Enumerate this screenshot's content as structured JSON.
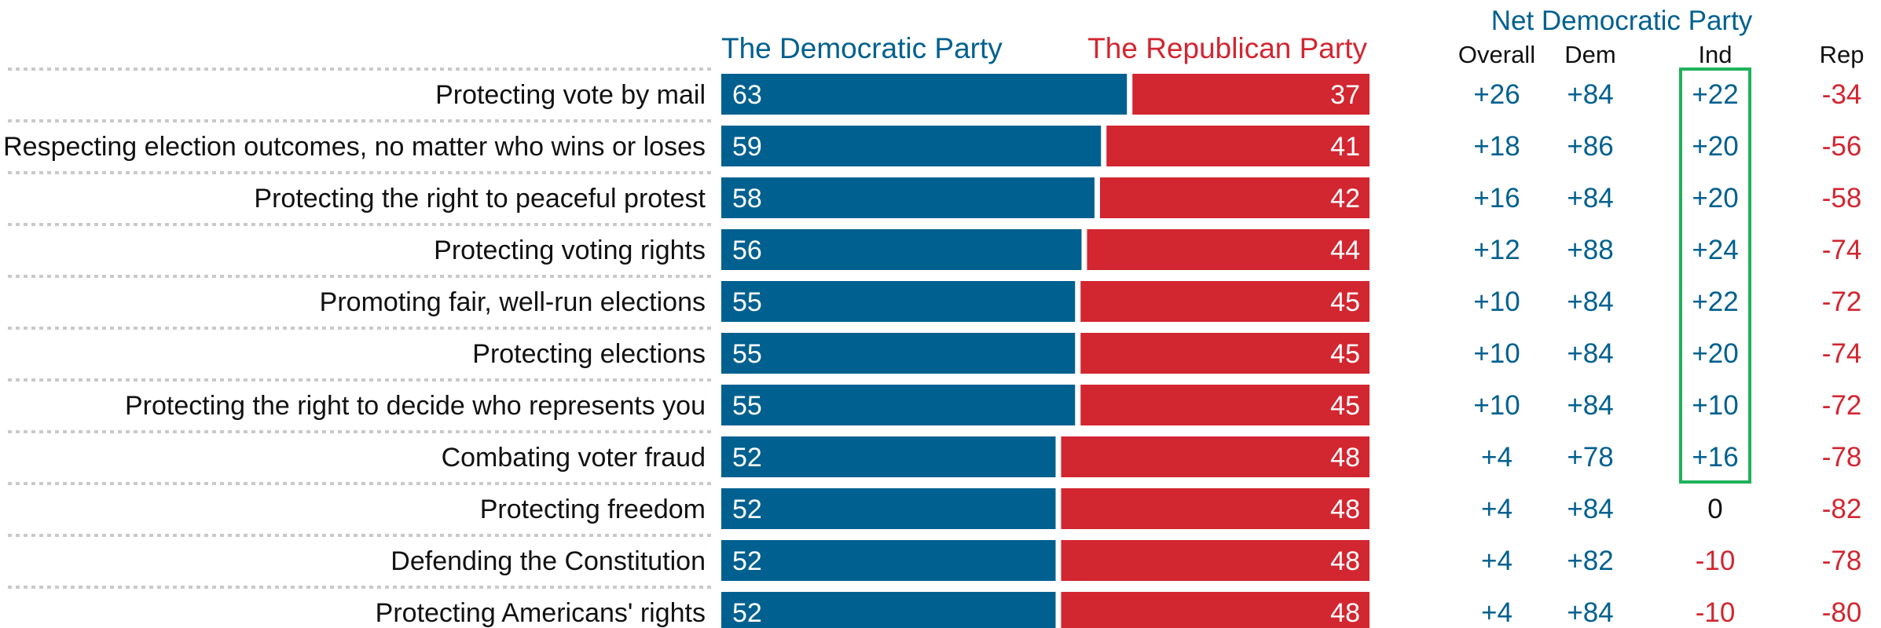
{
  "colors": {
    "democratic": "#00608f",
    "republican": "#d22630",
    "neutral": "#111111",
    "highlight_box": "#1fb25a",
    "dotted_rule": "#c9c9c9"
  },
  "chart_data": {
    "type": "bar",
    "orientation": "horizontal",
    "stacked": true,
    "title": "",
    "xlabel": "",
    "ylabel": "",
    "xlim": [
      0,
      100
    ],
    "legend": {
      "democratic": "The Democratic Party",
      "republican": "The Republican Party"
    },
    "categories": [
      "Protecting vote by mail",
      "Respecting election outcomes, no matter who wins or loses",
      "Protecting the right to peaceful protest",
      "Protecting voting rights",
      "Promoting fair, well-run elections",
      "Protecting elections",
      "Protecting the right to decide who represents you",
      "Combating voter fraud",
      "Protecting freedom",
      "Defending the Constitution",
      "Protecting Americans' rights"
    ],
    "series": [
      {
        "name": "The Democratic Party",
        "values": [
          63,
          59,
          58,
          56,
          55,
          55,
          55,
          52,
          52,
          52,
          52
        ]
      },
      {
        "name": "The Republican Party",
        "values": [
          37,
          41,
          42,
          44,
          45,
          45,
          45,
          48,
          48,
          48,
          48
        ]
      }
    ],
    "net_table": {
      "title": "Net Democratic Party",
      "columns": [
        "Overall",
        "Dem",
        "Ind",
        "Rep"
      ],
      "values": {
        "Overall": [
          26,
          18,
          16,
          12,
          10,
          10,
          10,
          4,
          4,
          4,
          4
        ],
        "Dem": [
          84,
          86,
          84,
          88,
          84,
          84,
          84,
          78,
          84,
          82,
          84
        ],
        "Ind": [
          22,
          20,
          20,
          24,
          22,
          20,
          10,
          16,
          0,
          -10,
          -10
        ],
        "Rep": [
          -34,
          -56,
          -58,
          -74,
          -72,
          -74,
          -72,
          -78,
          -82,
          -78,
          -80
        ]
      },
      "highlighted_column": "Ind",
      "highlighted_rows": [
        0,
        7
      ]
    }
  }
}
